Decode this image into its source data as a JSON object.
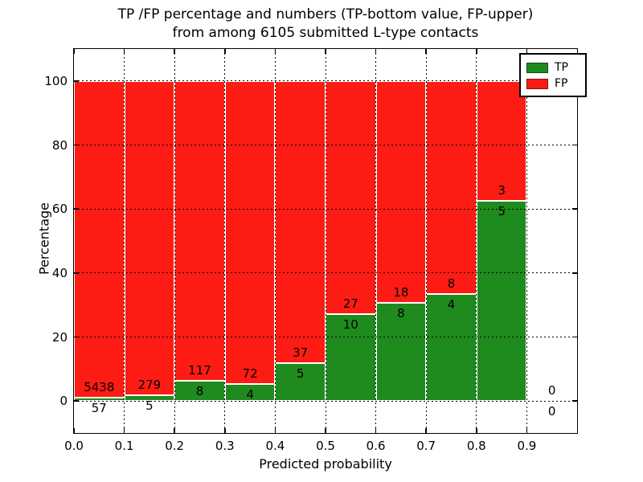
{
  "chart_data": {
    "type": "bar",
    "stacked": true,
    "title": "TP /FP percentage and numbers (TP-bottom value, FP-upper) from among 6105 submitted L-type contacts",
    "title_line1": "TP /FP percentage and numbers (TP-bottom value, FP-upper)",
    "title_line2": "from among 6105 submitted L-type contacts",
    "xlabel": "Predicted probability",
    "ylabel": "Percentage",
    "xlim": [
      0.0,
      1.0
    ],
    "ylim": [
      -10,
      110
    ],
    "grid": true,
    "legend_position": "upper right",
    "total_contacts": 6105,
    "colors": {
      "tp": "#1f8b1f",
      "fp": "#fd1c13",
      "bar_edge": "#ffffff",
      "grid": "#000000",
      "background": "#ffffff",
      "text": "#000000"
    },
    "legend": [
      {
        "key": "tp",
        "label": "TP"
      },
      {
        "key": "fp",
        "label": "FP"
      }
    ],
    "xticks": [
      {
        "v": 0.0,
        "label": "0.0"
      },
      {
        "v": 0.1,
        "label": "0.1"
      },
      {
        "v": 0.2,
        "label": "0.2"
      },
      {
        "v": 0.3,
        "label": "0.3"
      },
      {
        "v": 0.4,
        "label": "0.4"
      },
      {
        "v": 0.5,
        "label": "0.5"
      },
      {
        "v": 0.6,
        "label": "0.6"
      },
      {
        "v": 0.7,
        "label": "0.7"
      },
      {
        "v": 0.8,
        "label": "0.8"
      },
      {
        "v": 0.9,
        "label": "0.9"
      }
    ],
    "yticks": [
      {
        "v": 0,
        "label": "0"
      },
      {
        "v": 20,
        "label": "20"
      },
      {
        "v": 40,
        "label": "40"
      },
      {
        "v": 60,
        "label": "60"
      },
      {
        "v": 80,
        "label": "80"
      },
      {
        "v": 100,
        "label": "100"
      }
    ],
    "bins": [
      {
        "x0": 0.0,
        "x1": 0.1,
        "tp": 57,
        "fp": 5438,
        "tp_pct": 1.04
      },
      {
        "x0": 0.1,
        "x1": 0.2,
        "tp": 5,
        "fp": 279,
        "tp_pct": 1.76
      },
      {
        "x0": 0.2,
        "x1": 0.3,
        "tp": 8,
        "fp": 117,
        "tp_pct": 6.4
      },
      {
        "x0": 0.3,
        "x1": 0.4,
        "tp": 4,
        "fp": 72,
        "tp_pct": 5.26
      },
      {
        "x0": 0.4,
        "x1": 0.5,
        "tp": 5,
        "fp": 37,
        "tp_pct": 11.9
      },
      {
        "x0": 0.5,
        "x1": 0.6,
        "tp": 10,
        "fp": 27,
        "tp_pct": 27.03
      },
      {
        "x0": 0.6,
        "x1": 0.7,
        "tp": 8,
        "fp": 18,
        "tp_pct": 30.77
      },
      {
        "x0": 0.7,
        "x1": 0.8,
        "tp": 4,
        "fp": 8,
        "tp_pct": 33.33
      },
      {
        "x0": 0.8,
        "x1": 0.9,
        "tp": 5,
        "fp": 3,
        "tp_pct": 62.5
      },
      {
        "x0": 0.9,
        "x1": 1.0,
        "tp": 0,
        "fp": 0,
        "tp_pct": 0
      }
    ]
  }
}
